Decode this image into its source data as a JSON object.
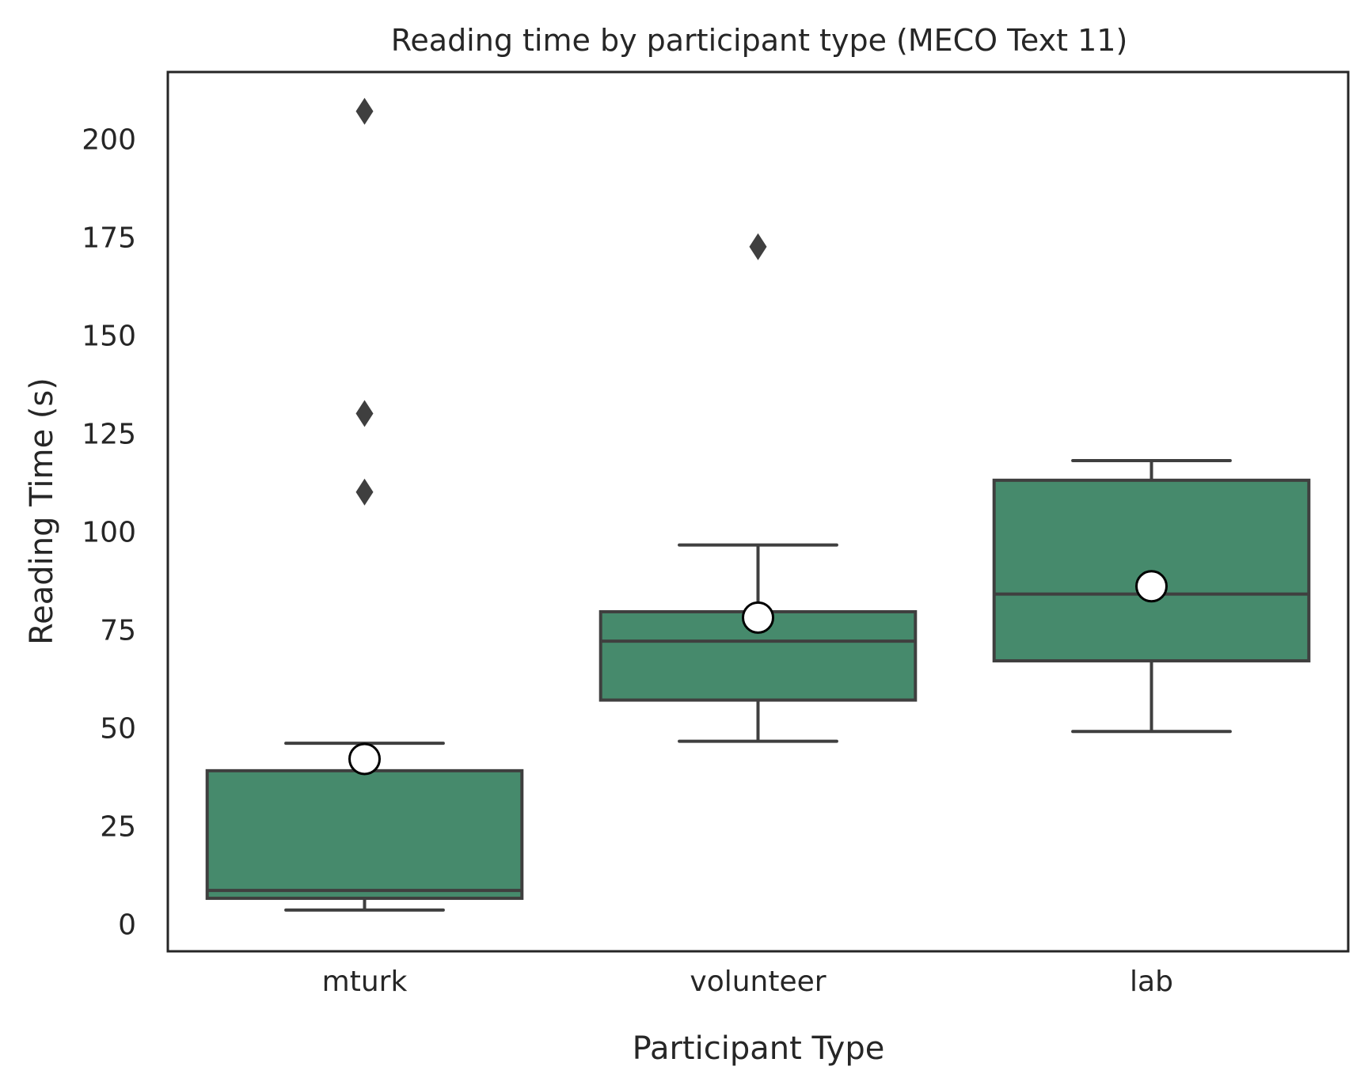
{
  "chart_data": {
    "type": "box",
    "title": "Reading time by participant type (MECO Text 11)",
    "xlabel": "Participant Type",
    "ylabel": "Reading Time (s)",
    "ylim": [
      -7,
      217
    ],
    "yticks": [
      0,
      25,
      50,
      75,
      100,
      125,
      150,
      175,
      200
    ],
    "grid": false,
    "legend": "none",
    "categories": [
      "mturk",
      "volunteer",
      "lab"
    ],
    "box_color": "#468a6c",
    "edge_color": "#3f3f3f",
    "series": [
      {
        "category": "mturk",
        "whisker_low": 3.5,
        "q1": 6.5,
        "median": 8.5,
        "q3": 39,
        "whisker_high": 46,
        "mean": 42,
        "outliers": [
          110,
          130,
          207
        ]
      },
      {
        "category": "volunteer",
        "whisker_low": 46.5,
        "q1": 57,
        "median": 72,
        "q3": 79.5,
        "whisker_high": 96.5,
        "mean": 78,
        "outliers": [
          172.5
        ]
      },
      {
        "category": "lab",
        "whisker_low": 49,
        "q1": 67,
        "median": 84,
        "q3": 113,
        "whisker_high": 118,
        "mean": 86,
        "outliers": []
      }
    ]
  }
}
